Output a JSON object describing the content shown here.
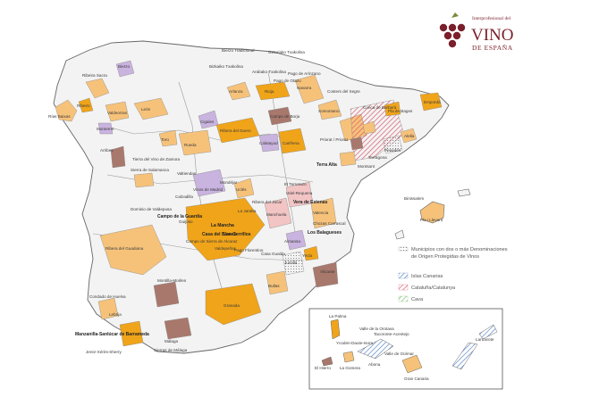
{
  "brand": {
    "line1": "Interprofesional del",
    "line2": "VINO",
    "line3": "DE ESPAÑA",
    "color": "#7a1f2b"
  },
  "legend": {
    "multi": "Municipios con dos o más Denominaciones de Origen Protegidas de Vinos",
    "multi_line1": "Municipios con dos o más Denominaciones",
    "multi_line2": "de Origen Protegidas de Vinos",
    "items": [
      {
        "label": "Islas Canarias",
        "color": "#5b86c6"
      },
      {
        "label": "Cataluña/Catalunya",
        "color": "#d95b6e"
      },
      {
        "label": "Cava",
        "color": "#7cbf73"
      }
    ]
  },
  "colors": {
    "orange": "#f0a419",
    "light_orange": "#f6c27a",
    "light_purple": "#c9b3df",
    "brown": "#a8786c",
    "pink": "#f2c4c4",
    "light_blue": "#aac3e2"
  },
  "labels": {
    "bierzo_tradicional": "Bierzo Tradicional",
    "getariako": "Getariako Txakolina",
    "bizkaiko": "Bizkaiko Txakolina",
    "arabako": "Arabako Txakolina",
    "rias_baixas": "Rías Baixas",
    "ribeira_sacra": "Ribeira Sacra",
    "ribeiro": "Ribeiro",
    "bierzo": "Bierzo",
    "valdeorras": "Valdeorras",
    "monterrei": "Monterrei",
    "leon": "León",
    "toro": "Toro",
    "rueda": "Rueda",
    "cigales": "Cigales",
    "ribera_duero": "Ribera del Duero",
    "arlanza": "Arlanza",
    "rioja": "Rioja",
    "navarra": "Navarra",
    "pago_otazu": "Pago de Otazu",
    "pago_arinzano": "Pago de Arínzano",
    "campo_borja": "Campo de Borja",
    "carinena": "Cariñena",
    "calatayud": "Calatayud",
    "somontano": "Somontano",
    "costers_segre": "Costers del Segre",
    "conca_barbera": "Conca de Barberà",
    "pla_bages": "Pla de Bages",
    "emporda": "Empordà",
    "alella": "Alella",
    "penedes": "Penedès",
    "tarragona": "Tarragona",
    "priorat": "Priorat / Priorat",
    "montsant": "Montsant",
    "terra_alta": "Terra Alta",
    "binissalem": "Binissalem",
    "pla_llevant": "Pla i Llevant",
    "arribes": "Arribes",
    "sierra_salamanca": "Sierra de Salamanca",
    "tierra_vino_zamora": "Tierra del Vino de Zamora",
    "valtiendas": "Valtiendas",
    "dominio_valdepusa": "Dominio de Valdepusa",
    "campo_guardia": "Campo de la Guardia",
    "la_mancha": "La Mancha",
    "la_jaraba": "La Jaraba",
    "casa_blanco": "Casa del Blanco",
    "los_cerrillos": "Los Cerrillos",
    "valdepenas": "Valdepeñas",
    "almansa": "Almansa",
    "manchuela": "Manchuela",
    "utiel_requena": "Utiel-Requena",
    "valencia": "Valencia",
    "alicante": "Alicante",
    "jumilla": "Jumilla",
    "yecla": "Yecla",
    "bullas": "Bullas",
    "montilla_moriles": "Montilla-Moriles",
    "granada": "Granada",
    "condado_huelva": "Condado de Huelva",
    "lebrija": "Lebrija",
    "manzanilla": "Manzanilla-Sanlúcar de Barrameda",
    "jerez": "Jerez-Xérès-Sherry",
    "malaga": "Málaga",
    "sierras_malaga": "Sierras de Málaga",
    "ribera_guadiana": "Ribera del Guadiana",
    "uclés": "Uclés",
    "ribera_jucar": "Ribera del Júcar",
    "mondejar": "Mondéjar",
    "vinos_madrid": "Vinos de Madrid",
    "la_palma": "La Palma",
    "tacoronte": "Tacoronte-Acentejo",
    "valle_orotava": "Valle de la Orotava",
    "ycoden": "Ycoden-Daute-Isora",
    "valle_guimar": "Valle de Güímar",
    "el_hierro": "El Hierro",
    "la_gomera": "La Gomera",
    "abona": "Abona",
    "gran_canaria": "Gran Canaria",
    "lanzarote": "Lanzarote",
    "vera_estenas": "Vera de Estenas",
    "los_balagueses": "Los Balagueses",
    "chozas_carrascal": "Chozas Carrascal",
    "el_terrerazo": "El Terrerazo",
    "guijoso": "Guijoso",
    "casa_gualda": "Casa Gualda",
    "calzadilla": "Calzadilla",
    "sierra_alcaraz": "Campo de Sierra de Alcaraz",
    "pago_florentino": "Pago Florentino"
  }
}
